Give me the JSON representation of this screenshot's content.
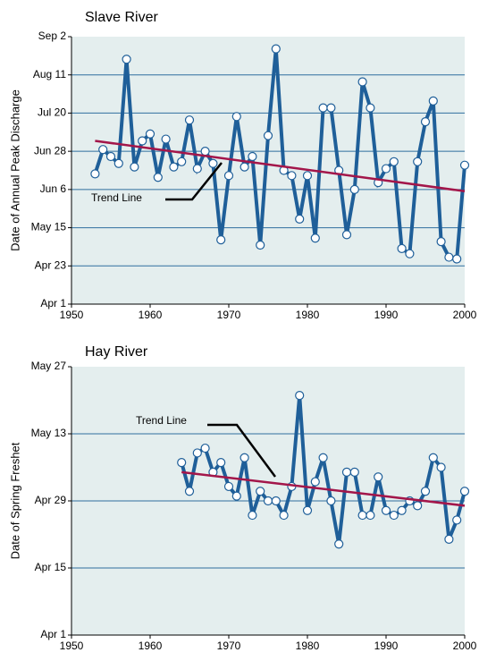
{
  "chart_data": [
    {
      "type": "line",
      "title": "Slave River",
      "y_label": "Date of Annual Peak Discharge",
      "xlim": [
        1950,
        2000
      ],
      "xticks": [
        1950,
        1960,
        1970,
        1980,
        1990,
        2000
      ],
      "ylim": [
        91,
        245
      ],
      "yticks": [
        {
          "value": 91,
          "label": "Apr 1"
        },
        {
          "value": 113,
          "label": "Apr 23"
        },
        {
          "value": 135,
          "label": "May 15"
        },
        {
          "value": 157,
          "label": "Jun 6"
        },
        {
          "value": 179,
          "label": "Jun 28"
        },
        {
          "value": 201,
          "label": "Jul 20"
        },
        {
          "value": 223,
          "label": "Aug 11"
        },
        {
          "value": 245,
          "label": "Sep 2"
        }
      ],
      "grid": true,
      "series": [
        {
          "color": "#1f5f99",
          "markers": true,
          "x": [
            1953,
            1954,
            1955,
            1956,
            1957,
            1958,
            1959,
            1960,
            1961,
            1962,
            1963,
            1964,
            1965,
            1966,
            1967,
            1968,
            1969,
            1970,
            1971,
            1972,
            1973,
            1974,
            1975,
            1976,
            1977,
            1978,
            1979,
            1980,
            1981,
            1982,
            1983,
            1984,
            1985,
            1986,
            1987,
            1988,
            1989,
            1990,
            1991,
            1992,
            1993,
            1994,
            1995,
            1996,
            1997,
            1998,
            1999,
            2000
          ],
          "values": [
            166,
            180,
            176,
            172,
            232,
            170,
            185,
            189,
            164,
            186,
            170,
            173,
            197,
            169,
            179,
            172,
            128,
            165,
            199,
            170,
            176,
            125,
            188,
            238,
            168,
            165,
            140,
            165,
            129,
            204,
            204,
            168,
            131,
            157,
            219,
            204,
            161,
            169,
            173,
            123,
            120,
            173,
            196,
            208,
            127,
            118,
            117,
            171
          ]
        },
        {
          "name": "Trend Line",
          "color": "#a3164a",
          "markers": false,
          "x": [
            1953,
            2000
          ],
          "values": [
            185,
            156
          ]
        }
      ]
    },
    {
      "type": "line",
      "title": "Hay River",
      "y_label": "Date of Spring Freshet",
      "xlim": [
        1950,
        2000
      ],
      "xticks": [
        1950,
        1960,
        1970,
        1980,
        1990,
        2000
      ],
      "ylim": [
        91,
        147
      ],
      "yticks": [
        {
          "value": 91,
          "label": "Apr 1"
        },
        {
          "value": 105,
          "label": "Apr 15"
        },
        {
          "value": 119,
          "label": "Apr 29"
        },
        {
          "value": 133,
          "label": "May 13"
        },
        {
          "value": 147,
          "label": "May 27"
        }
      ],
      "grid": true,
      "series": [
        {
          "color": "#1f5f99",
          "markers": true,
          "x": [
            1964,
            1965,
            1966,
            1967,
            1968,
            1969,
            1970,
            1971,
            1972,
            1973,
            1974,
            1975,
            1976,
            1977,
            1978,
            1979,
            1980,
            1981,
            1982,
            1983,
            1984,
            1985,
            1986,
            1987,
            1988,
            1989,
            1990,
            1991,
            1992,
            1993,
            1994,
            1995,
            1996,
            1997,
            1998,
            1999,
            2000
          ],
          "values": [
            127,
            121,
            129,
            130,
            125,
            127,
            122,
            120,
            128,
            116,
            121,
            119,
            119,
            116,
            122,
            141,
            117,
            123,
            128,
            119,
            110,
            125,
            125,
            116,
            116,
            124,
            117,
            116,
            117,
            119,
            118,
            121,
            128,
            126,
            111,
            115,
            121
          ]
        },
        {
          "name": "Trend Line",
          "color": "#a3164a",
          "markers": false,
          "x": [
            1964,
            2000
          ],
          "values": [
            125,
            118
          ]
        }
      ]
    }
  ]
}
